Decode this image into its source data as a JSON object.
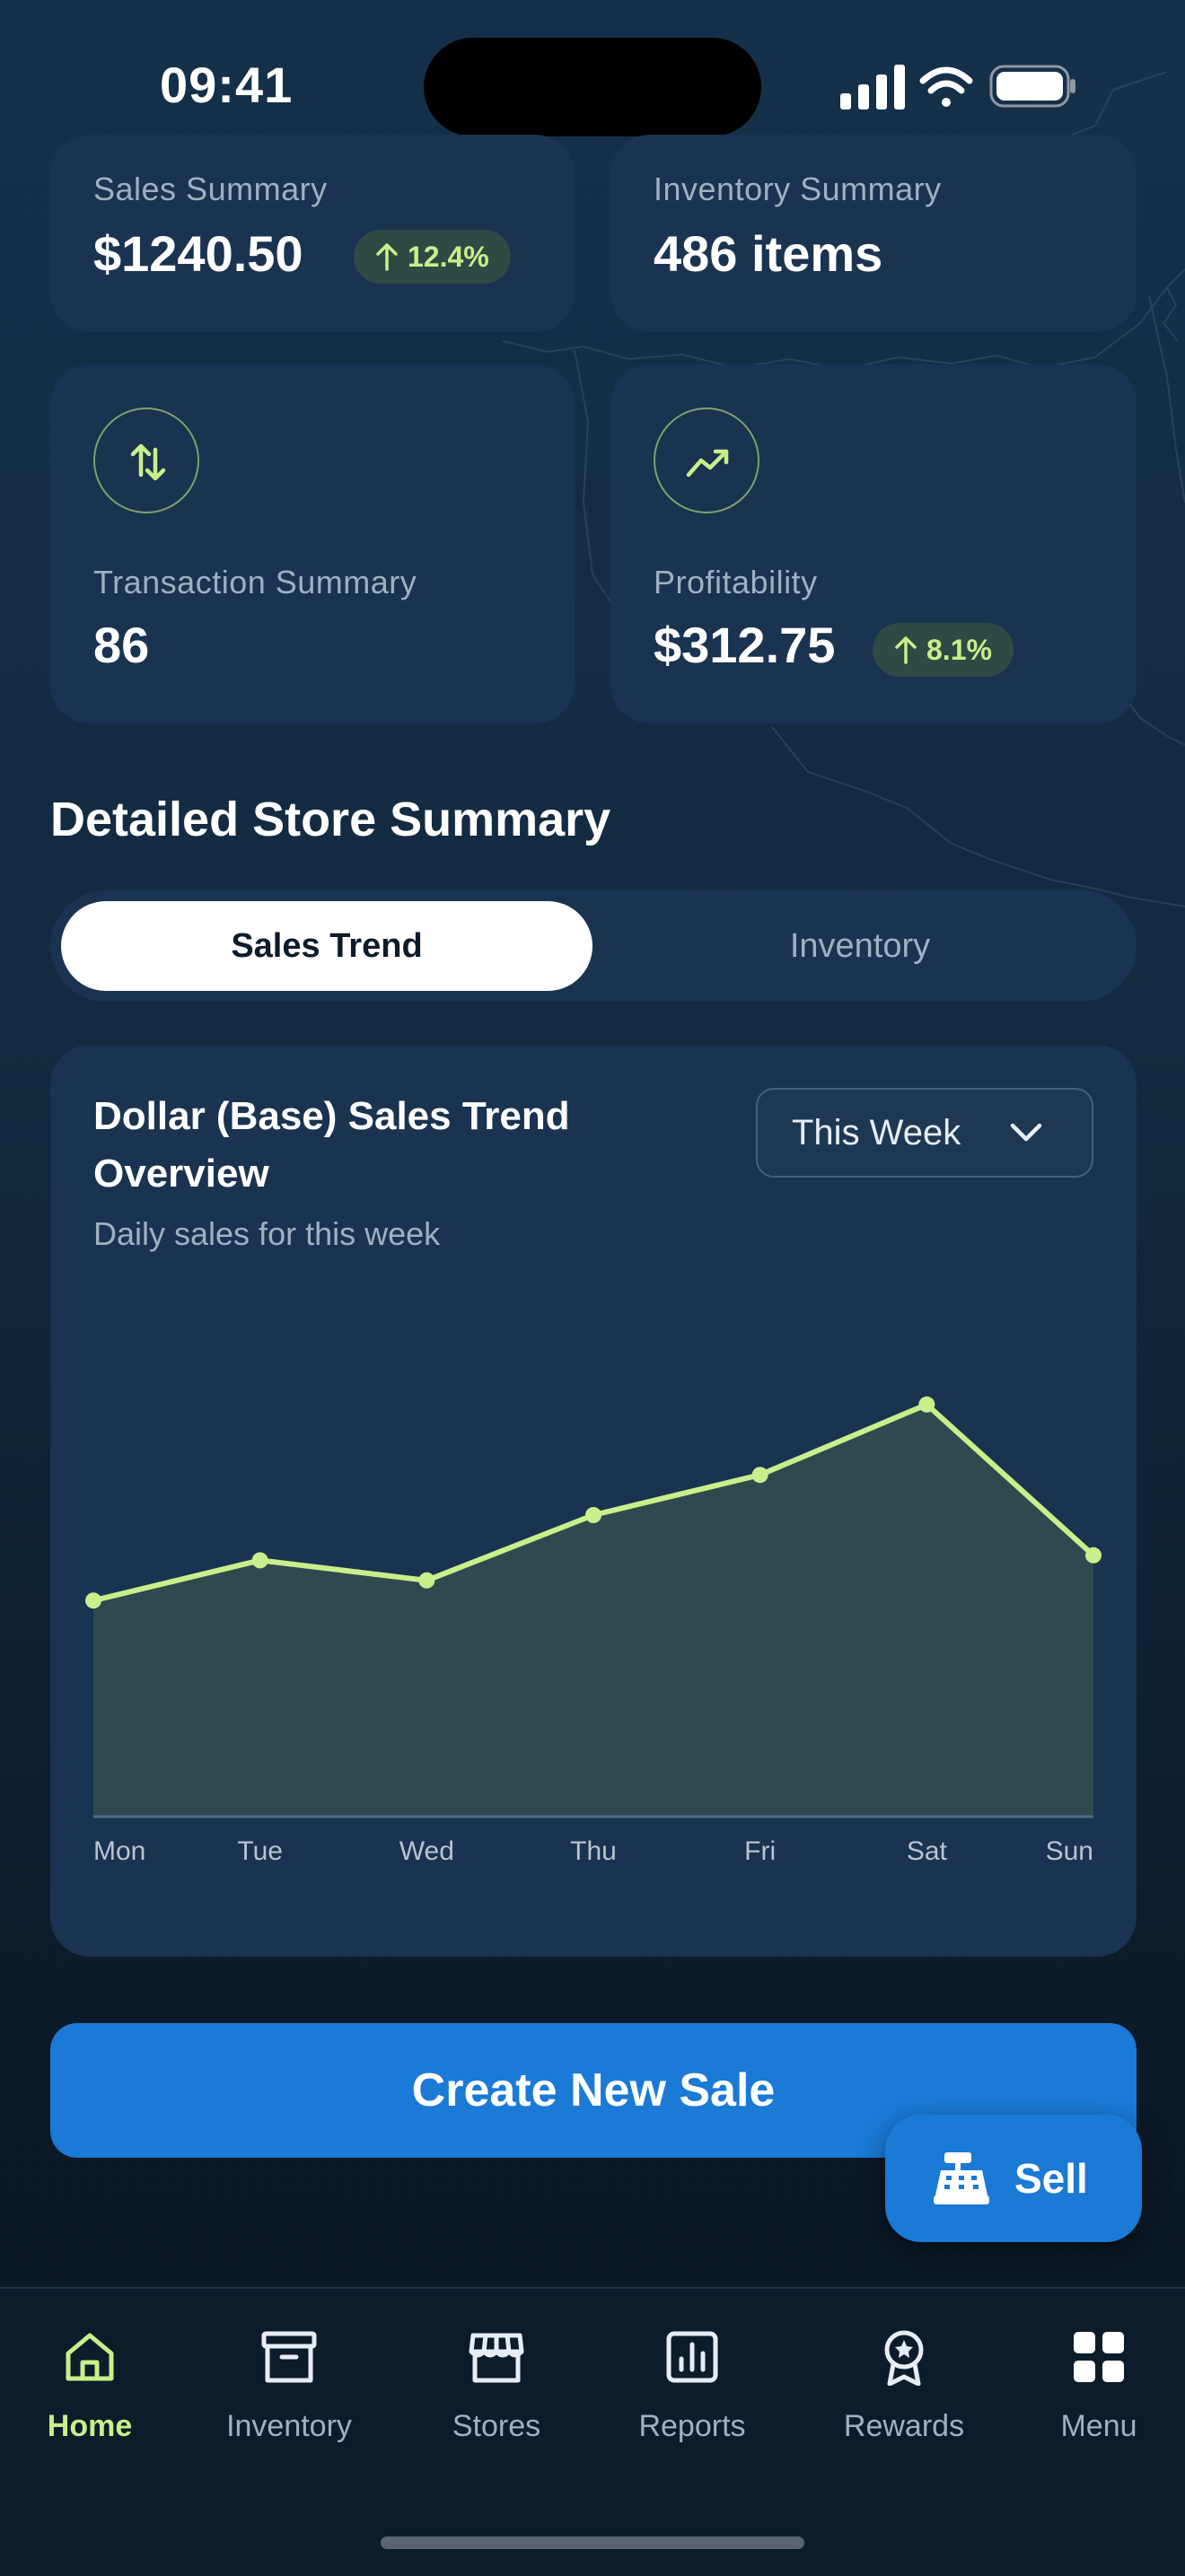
{
  "status_bar": {
    "time": "09:41"
  },
  "cards": {
    "sales": {
      "label": "Sales Summary",
      "value": "$1240.50",
      "change": "12.4%"
    },
    "inventory": {
      "label": "Inventory Summary",
      "value": "486 items"
    },
    "transactions": {
      "label": "Transaction Summary",
      "value": "86",
      "icon": "arrows-up-down-icon"
    },
    "profitability": {
      "label": "Profitability",
      "value": "$312.75",
      "change": "8.1%",
      "icon": "trending-up-icon"
    }
  },
  "section_title": "Detailed Store Summary",
  "toggle": {
    "active": "Sales Trend",
    "inactive": "Inventory"
  },
  "chart_card": {
    "title": "Dollar (Base) Sales Trend Overview",
    "subtitle": "Daily sales for this week",
    "dropdown": "This Week"
  },
  "chart_data": {
    "type": "area",
    "categories": [
      "Mon",
      "Tue",
      "Wed",
      "Thu",
      "Fri",
      "Sat",
      "Sun"
    ],
    "series": [
      {
        "values": [
          43,
          51,
          47,
          60,
          68,
          82,
          52
        ]
      }
    ],
    "ylim": [
      0,
      100
    ],
    "grid": false,
    "colors": {
      "line": "#c8ef8a",
      "fill": "#2f4a4f"
    }
  },
  "cta": {
    "label": "Create New Sale"
  },
  "fab": {
    "label": "Sell",
    "icon": "cash-register-icon"
  },
  "tabbar": {
    "items": [
      {
        "label": "Home",
        "icon": "home-icon",
        "active": true
      },
      {
        "label": "Inventory",
        "icon": "archive-box-icon"
      },
      {
        "label": "Stores",
        "icon": "store-icon"
      },
      {
        "label": "Reports",
        "icon": "bar-chart-icon"
      },
      {
        "label": "Rewards",
        "icon": "award-ribbon-icon"
      },
      {
        "label": "Menu",
        "icon": "grid-icon"
      }
    ]
  },
  "colors": {
    "accent": "#c8ef8a",
    "primary": "#1a7ad6",
    "card": "#1a3350"
  }
}
